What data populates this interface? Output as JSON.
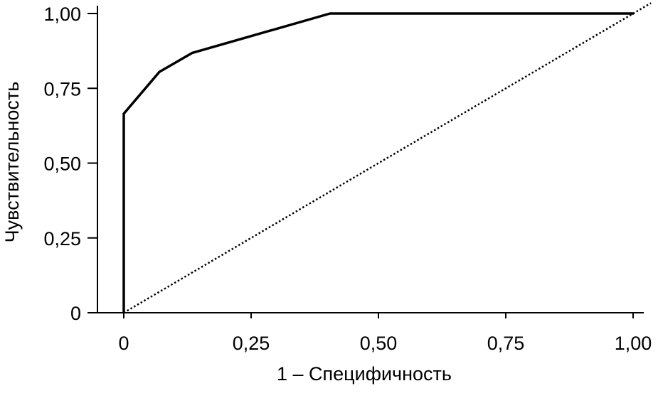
{
  "chart_data": {
    "type": "line",
    "xlabel": "1 – Специфичность",
    "ylabel": "Чувствительность",
    "xlim": [
      -0.067,
      1.02
    ],
    "ylim": [
      0,
      1
    ],
    "x_ticks": [
      {
        "value": 0,
        "label": "0"
      },
      {
        "value": 0.25,
        "label": "0,25"
      },
      {
        "value": 0.5,
        "label": "0,50"
      },
      {
        "value": 0.75,
        "label": "0,75"
      },
      {
        "value": 1,
        "label": "1,00"
      }
    ],
    "y_ticks": [
      {
        "value": 0,
        "label": "0"
      },
      {
        "value": 0.25,
        "label": "0,25"
      },
      {
        "value": 0.5,
        "label": "0,50"
      },
      {
        "value": 0.75,
        "label": "0,75"
      },
      {
        "value": 1,
        "label": "1,00"
      }
    ],
    "grid": false,
    "series": [
      {
        "style": "solid",
        "color": "#000000",
        "x": [
          0,
          0,
          0.07,
          0.134,
          0.405,
          1.0
        ],
        "y": [
          0,
          0.665,
          0.805,
          0.868,
          1.0,
          1.0
        ]
      },
      {
        "style": "dotted",
        "color": "#000000",
        "x": [
          0,
          1.035
        ],
        "y": [
          0,
          1.035
        ]
      }
    ]
  }
}
